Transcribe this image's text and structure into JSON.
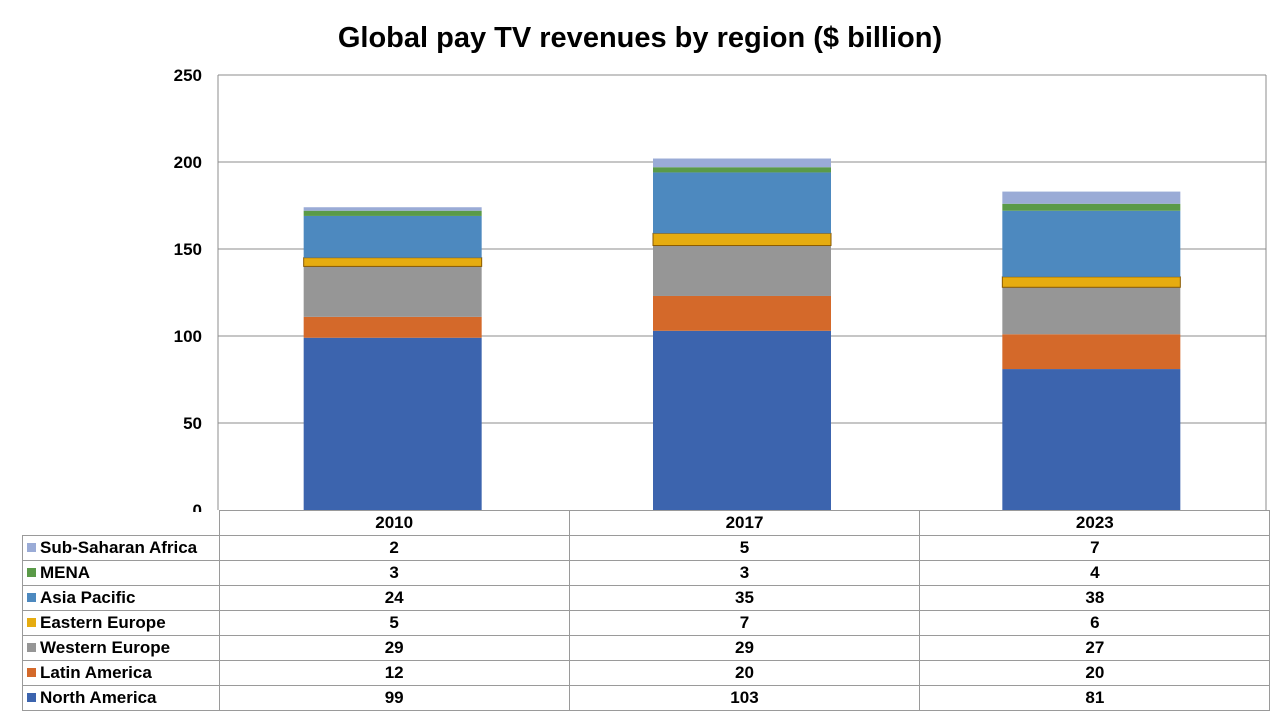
{
  "chart_data": {
    "type": "bar",
    "stacked": true,
    "title": "Global pay TV revenues by region ($ billion)",
    "categories": [
      "2010",
      "2017",
      "2023"
    ],
    "ylim": [
      0,
      250
    ],
    "yticks": [
      "0",
      "50",
      "100",
      "150",
      "200",
      "250"
    ],
    "grid": true,
    "legend": "data-table",
    "series": [
      {
        "name": "North America",
        "color": "#3C64AE",
        "values": [
          99,
          103,
          81
        ]
      },
      {
        "name": "Latin America",
        "color": "#D4692A",
        "values": [
          12,
          20,
          20
        ]
      },
      {
        "name": "Western Europe",
        "color": "#969696",
        "values": [
          29,
          29,
          27
        ]
      },
      {
        "name": "Eastern Europe",
        "color": "#E6AC10",
        "values": [
          5,
          7,
          6
        ]
      },
      {
        "name": "Asia Pacific",
        "color": "#4D89BF",
        "values": [
          24,
          35,
          38
        ]
      },
      {
        "name": "MENA",
        "color": "#5A9A48",
        "values": [
          3,
          3,
          4
        ]
      },
      {
        "name": "Sub-Saharan Africa",
        "color": "#9AABD6",
        "values": [
          2,
          5,
          7
        ]
      }
    ]
  }
}
